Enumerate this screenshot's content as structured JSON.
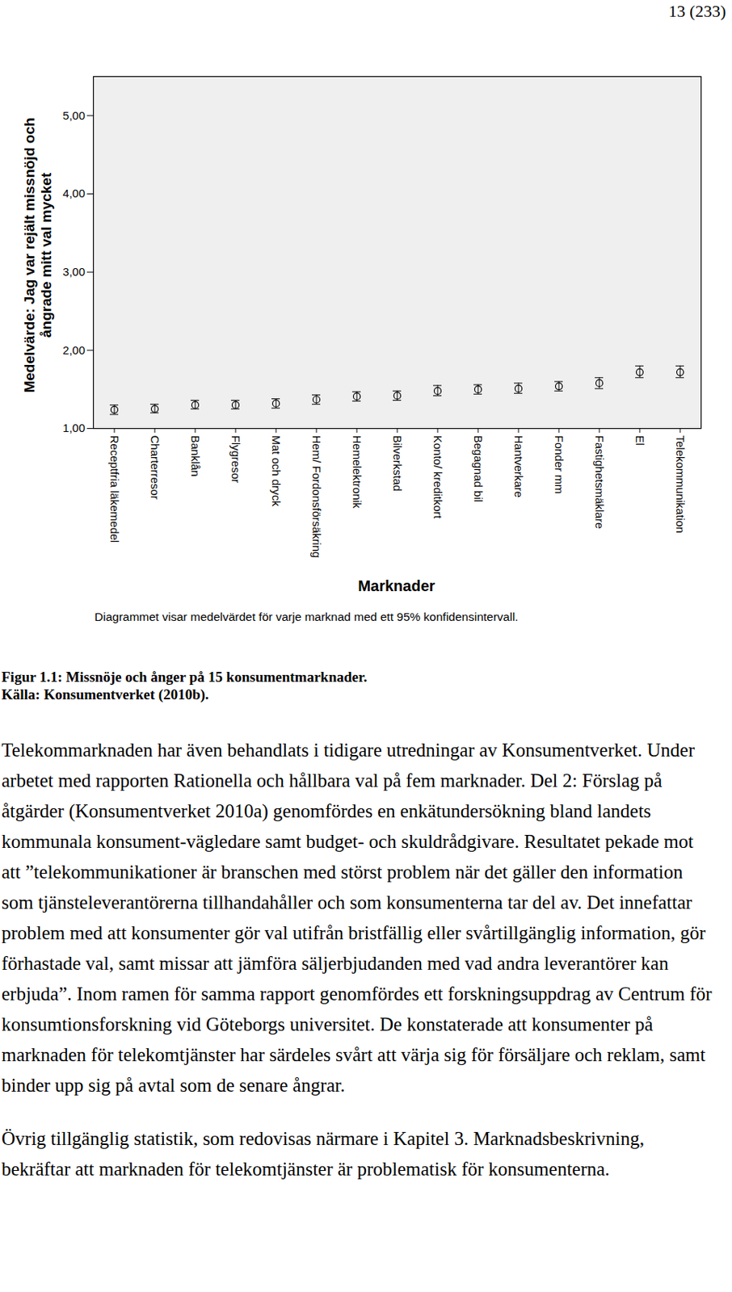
{
  "page_number": "13 (233)",
  "chart_data": {
    "type": "error_bar",
    "x_label": "Marknader",
    "y_label": "Medelvärde: Jag var rejält missnöjd och ångrade mitt val mycket",
    "annotation": "Diagrammet visar medelvärdet för varje marknad med ett 95% konfidensintervall.",
    "categories": [
      "Receptfria läkemedel",
      "Charterresor",
      "Banklån",
      "Flygresor",
      "Mat och dryck",
      "Hem/ Fordonsförsäkring",
      "Hemelektronik",
      "Bilverkstad",
      "Konto/ kreditkort",
      "Begagnad bil",
      "Hantverkare",
      "Fonder mm",
      "Fastighetsmäklare",
      "El",
      "Telekommunikation"
    ],
    "values": [
      1.24,
      1.25,
      1.3,
      1.3,
      1.32,
      1.37,
      1.41,
      1.42,
      1.48,
      1.5,
      1.51,
      1.54,
      1.58,
      1.72,
      1.72
    ],
    "ci_low": [
      1.18,
      1.2,
      1.25,
      1.25,
      1.26,
      1.31,
      1.35,
      1.36,
      1.42,
      1.44,
      1.45,
      1.48,
      1.51,
      1.65,
      1.65
    ],
    "ci_high": [
      1.3,
      1.31,
      1.36,
      1.36,
      1.38,
      1.43,
      1.47,
      1.48,
      1.55,
      1.56,
      1.58,
      1.6,
      1.65,
      1.8,
      1.8
    ],
    "ylim": [
      1,
      5.5
    ],
    "yticks": [
      {
        "value": 1,
        "label": "1,00"
      },
      {
        "value": 2,
        "label": "2,00"
      },
      {
        "value": 3,
        "label": "3,00"
      },
      {
        "value": 4,
        "label": "4,00"
      },
      {
        "value": 5,
        "label": "5,00"
      }
    ],
    "grid": false
  },
  "figure_caption": [
    "Figur 1.1: Missnöje och ånger på 15 konsumentmarknader.",
    "Källa: Konsumentverket (2010b)."
  ],
  "paragraphs": [
    "Telekommarknaden har även behandlats i tidigare utredningar av Konsumentverket. Under arbetet med rapporten Rationella och hållbara val på fem marknader. Del 2: Förslag på åtgärder (Konsumentverket 2010a) genomfördes en enkätundersökning bland landets kommunala konsument-vägledare samt budget- och skuldrådgivare. Resultatet pekade mot att ”telekommunikationer är branschen med störst problem när det gäller den information som tjänsteleverantörerna tillhandahåller och som konsumenterna tar del av. Det innefattar problem med att konsumenter gör val utifrån bristfällig eller svårtillgänglig information, gör förhastade val, samt missar att jämföra säljerbjudanden med vad andra leverantörer kan erbjuda”. Inom ramen för samma rapport genomfördes ett forskningsuppdrag av Centrum för konsumtionsforskning vid Göteborgs universitet. De konstaterade att konsumenter på marknaden för telekomtjänster har särdeles svårt att värja sig för försäljare och reklam, samt binder upp sig på avtal som de senare ångrar.",
    "Övrig tillgänglig statistik, som redovisas närmare i Kapitel 3. Marknadsbeskrivning, bekräftar att marknaden för telekomtjänster är problematisk för konsumenterna."
  ]
}
